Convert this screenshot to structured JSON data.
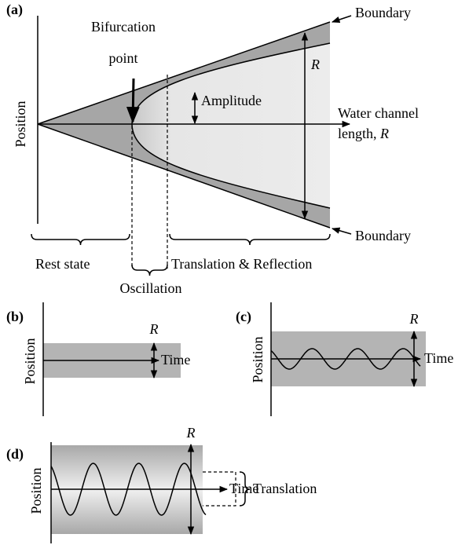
{
  "panel_a": {
    "label": "(a)",
    "y_label": "Position",
    "bifurcation": [
      "Bifurcation",
      "point"
    ],
    "amplitude": "Amplitude",
    "range": "R",
    "x_label": {
      "line1": "Water channel",
      "line2": "length,",
      "line2_var": "R"
    },
    "boundary_upper": "Boundary",
    "boundary_lower": "Boundary",
    "regimes": {
      "rest": "Rest state",
      "oscillation": "Oscillation",
      "translation": "Translation & Reflection"
    }
  },
  "panel_b": {
    "label": "(b)",
    "y_label": "Position",
    "x_label": "Time",
    "range": "R"
  },
  "panel_c": {
    "label": "(c)",
    "y_label": "Position",
    "x_label": "Time",
    "range": "R"
  },
  "panel_d": {
    "label": "(d)",
    "y_label": "Position",
    "x_label": "Time",
    "range": "R",
    "bracket": "Translation"
  }
}
